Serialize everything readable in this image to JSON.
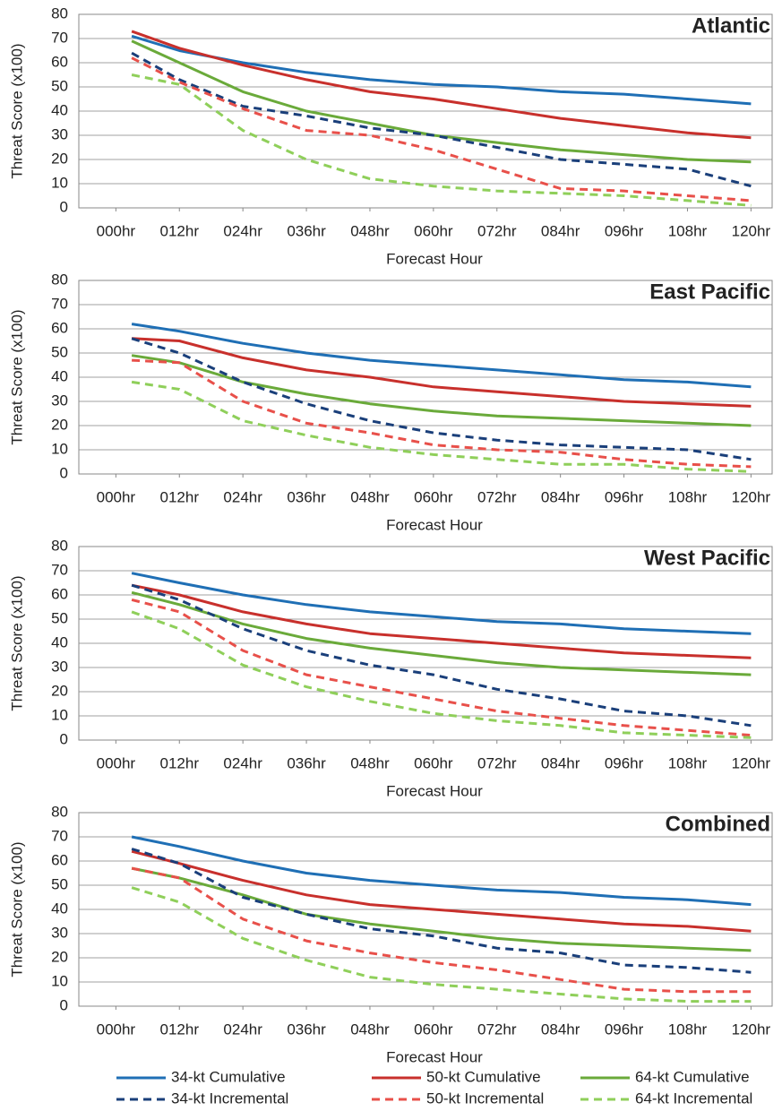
{
  "chart_data": [
    {
      "type": "line",
      "title": "Atlantic",
      "xlabel": "Forecast Hour",
      "ylabel": "Threat Score (x100)",
      "x": [
        3,
        12,
        24,
        36,
        48,
        60,
        72,
        84,
        96,
        108,
        120
      ],
      "xlim": [
        -7,
        124
      ],
      "xticks": [
        {
          "value": 0,
          "label": "000hr"
        },
        {
          "value": 12,
          "label": "012hr"
        },
        {
          "value": 24,
          "label": "024hr"
        },
        {
          "value": 36,
          "label": "036hr"
        },
        {
          "value": 48,
          "label": "048hr"
        },
        {
          "value": 60,
          "label": "060hr"
        },
        {
          "value": 72,
          "label": "072hr"
        },
        {
          "value": 84,
          "label": "084hr"
        },
        {
          "value": 96,
          "label": "096hr"
        },
        {
          "value": 108,
          "label": "108hr"
        },
        {
          "value": 120,
          "label": "120hr"
        }
      ],
      "ylim": [
        0,
        80
      ],
      "yticks": [
        0,
        10,
        20,
        30,
        40,
        50,
        60,
        70,
        80
      ],
      "grid": true,
      "series": [
        {
          "name": "34-kt Cumulative",
          "color": "#1f6fb5",
          "dash": false,
          "values": [
            71,
            65,
            60,
            56,
            53,
            51,
            50,
            48,
            47,
            45,
            43
          ]
        },
        {
          "name": "50-kt Cumulative",
          "color": "#c8302c",
          "dash": false,
          "values": [
            73,
            66,
            59,
            53,
            48,
            45,
            41,
            37,
            34,
            31,
            29
          ]
        },
        {
          "name": "64-kt Cumulative",
          "color": "#6aaa3a",
          "dash": false,
          "values": [
            69,
            60,
            48,
            40,
            35,
            30,
            27,
            24,
            22,
            20,
            19
          ]
        },
        {
          "name": "34-kt Incremental",
          "color": "#1a3f7a",
          "dash": true,
          "values": [
            64,
            53,
            42,
            38,
            33,
            30,
            25,
            20,
            18,
            16,
            9
          ]
        },
        {
          "name": "50-kt Incremental",
          "color": "#e8504a",
          "dash": true,
          "values": [
            62,
            52,
            41,
            32,
            30,
            24,
            16,
            8,
            7,
            5,
            3
          ]
        },
        {
          "name": "64-kt Incremental",
          "color": "#8fcf5a",
          "dash": true,
          "values": [
            55,
            51,
            32,
            20,
            12,
            9,
            7,
            6,
            5,
            3,
            1
          ]
        }
      ]
    },
    {
      "type": "line",
      "title": "East Pacific",
      "xlabel": "Forecast Hour",
      "ylabel": "Threat Score (x100)",
      "x": [
        3,
        12,
        24,
        36,
        48,
        60,
        72,
        84,
        96,
        108,
        120
      ],
      "xlim": [
        -7,
        124
      ],
      "xticks": [
        {
          "value": 0,
          "label": "000hr"
        },
        {
          "value": 12,
          "label": "012hr"
        },
        {
          "value": 24,
          "label": "024hr"
        },
        {
          "value": 36,
          "label": "036hr"
        },
        {
          "value": 48,
          "label": "048hr"
        },
        {
          "value": 60,
          "label": "060hr"
        },
        {
          "value": 72,
          "label": "072hr"
        },
        {
          "value": 84,
          "label": "084hr"
        },
        {
          "value": 96,
          "label": "096hr"
        },
        {
          "value": 108,
          "label": "108hr"
        },
        {
          "value": 120,
          "label": "120hr"
        }
      ],
      "ylim": [
        0,
        80
      ],
      "yticks": [
        0,
        10,
        20,
        30,
        40,
        50,
        60,
        70,
        80
      ],
      "grid": true,
      "series": [
        {
          "name": "34-kt Cumulative",
          "color": "#1f6fb5",
          "dash": false,
          "values": [
            62,
            59,
            54,
            50,
            47,
            45,
            43,
            41,
            39,
            38,
            36
          ]
        },
        {
          "name": "50-kt Cumulative",
          "color": "#c8302c",
          "dash": false,
          "values": [
            56,
            55,
            48,
            43,
            40,
            36,
            34,
            32,
            30,
            29,
            28
          ]
        },
        {
          "name": "64-kt Cumulative",
          "color": "#6aaa3a",
          "dash": false,
          "values": [
            49,
            46,
            38,
            33,
            29,
            26,
            24,
            23,
            22,
            21,
            20
          ]
        },
        {
          "name": "34-kt Incremental",
          "color": "#1a3f7a",
          "dash": true,
          "values": [
            56,
            50,
            38,
            29,
            22,
            17,
            14,
            12,
            11,
            10,
            6
          ]
        },
        {
          "name": "50-kt Incremental",
          "color": "#e8504a",
          "dash": true,
          "values": [
            47,
            46,
            30,
            21,
            17,
            12,
            10,
            9,
            6,
            4,
            3
          ]
        },
        {
          "name": "64-kt Incremental",
          "color": "#8fcf5a",
          "dash": true,
          "values": [
            38,
            35,
            22,
            16,
            11,
            8,
            6,
            4,
            4,
            2,
            1
          ]
        }
      ]
    },
    {
      "type": "line",
      "title": "West Pacific",
      "xlabel": "Forecast Hour",
      "ylabel": "Threat Score (x100)",
      "x": [
        3,
        12,
        24,
        36,
        48,
        60,
        72,
        84,
        96,
        108,
        120
      ],
      "xlim": [
        -7,
        124
      ],
      "xticks": [
        {
          "value": 0,
          "label": "000hr"
        },
        {
          "value": 12,
          "label": "012hr"
        },
        {
          "value": 24,
          "label": "024hr"
        },
        {
          "value": 36,
          "label": "036hr"
        },
        {
          "value": 48,
          "label": "048hr"
        },
        {
          "value": 60,
          "label": "060hr"
        },
        {
          "value": 72,
          "label": "072hr"
        },
        {
          "value": 84,
          "label": "084hr"
        },
        {
          "value": 96,
          "label": "096hr"
        },
        {
          "value": 108,
          "label": "108hr"
        },
        {
          "value": 120,
          "label": "120hr"
        }
      ],
      "ylim": [
        0,
        80
      ],
      "yticks": [
        0,
        10,
        20,
        30,
        40,
        50,
        60,
        70,
        80
      ],
      "grid": true,
      "series": [
        {
          "name": "34-kt Cumulative",
          "color": "#1f6fb5",
          "dash": false,
          "values": [
            69,
            65,
            60,
            56,
            53,
            51,
            49,
            48,
            46,
            45,
            44
          ]
        },
        {
          "name": "50-kt Cumulative",
          "color": "#c8302c",
          "dash": false,
          "values": [
            64,
            60,
            53,
            48,
            44,
            42,
            40,
            38,
            36,
            35,
            34
          ]
        },
        {
          "name": "64-kt Cumulative",
          "color": "#6aaa3a",
          "dash": false,
          "values": [
            61,
            56,
            48,
            42,
            38,
            35,
            32,
            30,
            29,
            28,
            27
          ]
        },
        {
          "name": "34-kt Incremental",
          "color": "#1a3f7a",
          "dash": true,
          "values": [
            64,
            58,
            46,
            37,
            31,
            27,
            21,
            17,
            12,
            10,
            6
          ]
        },
        {
          "name": "50-kt Incremental",
          "color": "#e8504a",
          "dash": true,
          "values": [
            58,
            53,
            37,
            27,
            22,
            17,
            12,
            9,
            6,
            4,
            2
          ]
        },
        {
          "name": "64-kt Incremental",
          "color": "#8fcf5a",
          "dash": true,
          "values": [
            53,
            46,
            31,
            22,
            16,
            11,
            8,
            6,
            3,
            2,
            1
          ]
        }
      ]
    },
    {
      "type": "line",
      "title": "Combined",
      "xlabel": "Forecast Hour",
      "ylabel": "Threat Score (x100)",
      "x": [
        3,
        12,
        24,
        36,
        48,
        60,
        72,
        84,
        96,
        108,
        120
      ],
      "xlim": [
        -7,
        124
      ],
      "xticks": [
        {
          "value": 0,
          "label": "000hr"
        },
        {
          "value": 12,
          "label": "012hr"
        },
        {
          "value": 24,
          "label": "024hr"
        },
        {
          "value": 36,
          "label": "036hr"
        },
        {
          "value": 48,
          "label": "048hr"
        },
        {
          "value": 60,
          "label": "060hr"
        },
        {
          "value": 72,
          "label": "072hr"
        },
        {
          "value": 84,
          "label": "084hr"
        },
        {
          "value": 96,
          "label": "096hr"
        },
        {
          "value": 108,
          "label": "108hr"
        },
        {
          "value": 120,
          "label": "120hr"
        }
      ],
      "ylim": [
        0,
        80
      ],
      "yticks": [
        0,
        10,
        20,
        30,
        40,
        50,
        60,
        70,
        80
      ],
      "grid": true,
      "legend": "bottom",
      "series": [
        {
          "name": "34-kt Cumulative",
          "color": "#1f6fb5",
          "dash": false,
          "values": [
            70,
            66,
            60,
            55,
            52,
            50,
            48,
            47,
            45,
            44,
            42
          ]
        },
        {
          "name": "50-kt Cumulative",
          "color": "#c8302c",
          "dash": false,
          "values": [
            64,
            59,
            52,
            46,
            42,
            40,
            38,
            36,
            34,
            33,
            31
          ]
        },
        {
          "name": "64-kt Cumulative",
          "color": "#6aaa3a",
          "dash": false,
          "values": [
            57,
            53,
            46,
            38,
            34,
            31,
            28,
            26,
            25,
            24,
            23
          ]
        },
        {
          "name": "34-kt Incremental",
          "color": "#1a3f7a",
          "dash": true,
          "values": [
            65,
            59,
            45,
            38,
            32,
            29,
            24,
            22,
            17,
            16,
            14
          ]
        },
        {
          "name": "50-kt Incremental",
          "color": "#e8504a",
          "dash": true,
          "values": [
            57,
            53,
            36,
            27,
            22,
            18,
            15,
            11,
            7,
            6,
            6
          ]
        },
        {
          "name": "64-kt Incremental",
          "color": "#8fcf5a",
          "dash": true,
          "values": [
            49,
            43,
            28,
            19,
            12,
            9,
            7,
            5,
            3,
            2,
            2
          ]
        }
      ]
    }
  ]
}
